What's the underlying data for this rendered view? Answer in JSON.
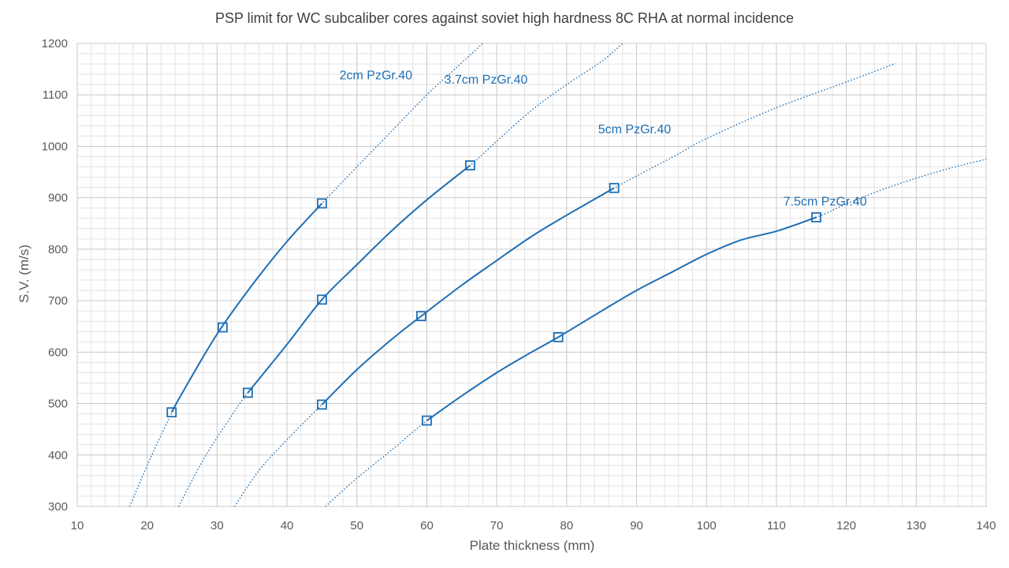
{
  "chart_data": {
    "type": "scatter",
    "title": "PSP  limit for WC subcaliber cores against soviet high hardness 8C RHA at normal incidence",
    "xlabel": "Plate thickness  (mm)",
    "ylabel": "S.V. (m/s)",
    "xlim": [
      10,
      140
    ],
    "ylim": [
      300,
      1200
    ],
    "x_major_step": 10,
    "y_major_step": 100,
    "x_minor_step": 2,
    "y_minor_step": 20,
    "x_ticks": [
      "10",
      "20",
      "30",
      "40",
      "50",
      "60",
      "70",
      "80",
      "90",
      "100",
      "110",
      "120",
      "130",
      "140"
    ],
    "y_ticks": [
      "300",
      "400",
      "500",
      "600",
      "700",
      "800",
      "900",
      "1000",
      "1100",
      "1200"
    ],
    "grid": true,
    "line_color": "#1F6FB5",
    "series": [
      {
        "name": "2cm PzGr.40",
        "points": [
          [
            23.5,
            483
          ],
          [
            30.8,
            648
          ],
          [
            45.0,
            889
          ]
        ],
        "trend": [
          [
            17.5,
            300
          ],
          [
            21,
            410
          ],
          [
            25,
            520
          ],
          [
            30,
            635
          ],
          [
            35,
            730
          ],
          [
            40,
            815
          ],
          [
            45,
            889
          ],
          [
            50,
            960
          ],
          [
            55,
            1030
          ],
          [
            60,
            1100
          ],
          [
            64,
            1150
          ],
          [
            68,
            1200
          ]
        ],
        "label_at": [
          47.5,
          1130
        ]
      },
      {
        "name": "3.7cm PzGr.40",
        "points": [
          [
            34.4,
            521
          ],
          [
            45.0,
            702
          ],
          [
            66.2,
            963
          ]
        ],
        "trend": [
          [
            24.5,
            300
          ],
          [
            28,
            390
          ],
          [
            32,
            475
          ],
          [
            34.4,
            521
          ],
          [
            40,
            615
          ],
          [
            45,
            702
          ],
          [
            50,
            770
          ],
          [
            55,
            836
          ],
          [
            60,
            896
          ],
          [
            66.2,
            963
          ],
          [
            70,
            1010
          ],
          [
            75,
            1070
          ],
          [
            80,
            1120
          ],
          [
            85,
            1165
          ],
          [
            88,
            1200
          ]
        ],
        "label_at": [
          62.5,
          1122
        ]
      },
      {
        "name": "5cm PzGr.40",
        "points": [
          [
            45.0,
            498
          ],
          [
            59.2,
            670
          ],
          [
            86.8,
            919
          ]
        ],
        "trend": [
          [
            32.5,
            300
          ],
          [
            36,
            370
          ],
          [
            40,
            430
          ],
          [
            45,
            498
          ],
          [
            50,
            566
          ],
          [
            55,
            625
          ],
          [
            59.2,
            670
          ],
          [
            65,
            730
          ],
          [
            70,
            778
          ],
          [
            75,
            825
          ],
          [
            80,
            866
          ],
          [
            86.8,
            919
          ],
          [
            95,
            978
          ],
          [
            100,
            1015
          ],
          [
            110,
            1075
          ],
          [
            120,
            1125
          ],
          [
            127,
            1161
          ]
        ],
        "label_at": [
          84.5,
          1025
        ]
      },
      {
        "name": "7.5cm PzGr.40",
        "points": [
          [
            60.0,
            467
          ],
          [
            78.8,
            629
          ],
          [
            115.7,
            862
          ]
        ],
        "trend": [
          [
            45.5,
            300
          ],
          [
            50,
            355
          ],
          [
            55,
            410
          ],
          [
            60,
            467
          ],
          [
            65,
            515
          ],
          [
            70,
            560
          ],
          [
            75,
            600
          ],
          [
            78.8,
            629
          ],
          [
            85,
            680
          ],
          [
            90,
            720
          ],
          [
            95,
            755
          ],
          [
            100,
            790
          ],
          [
            105,
            818
          ],
          [
            110,
            835
          ],
          [
            115.7,
            862
          ],
          [
            120,
            888
          ],
          [
            125,
            915
          ],
          [
            130,
            938
          ],
          [
            135,
            958
          ],
          [
            140,
            975
          ]
        ],
        "label_at": [
          111,
          885
        ]
      }
    ]
  }
}
